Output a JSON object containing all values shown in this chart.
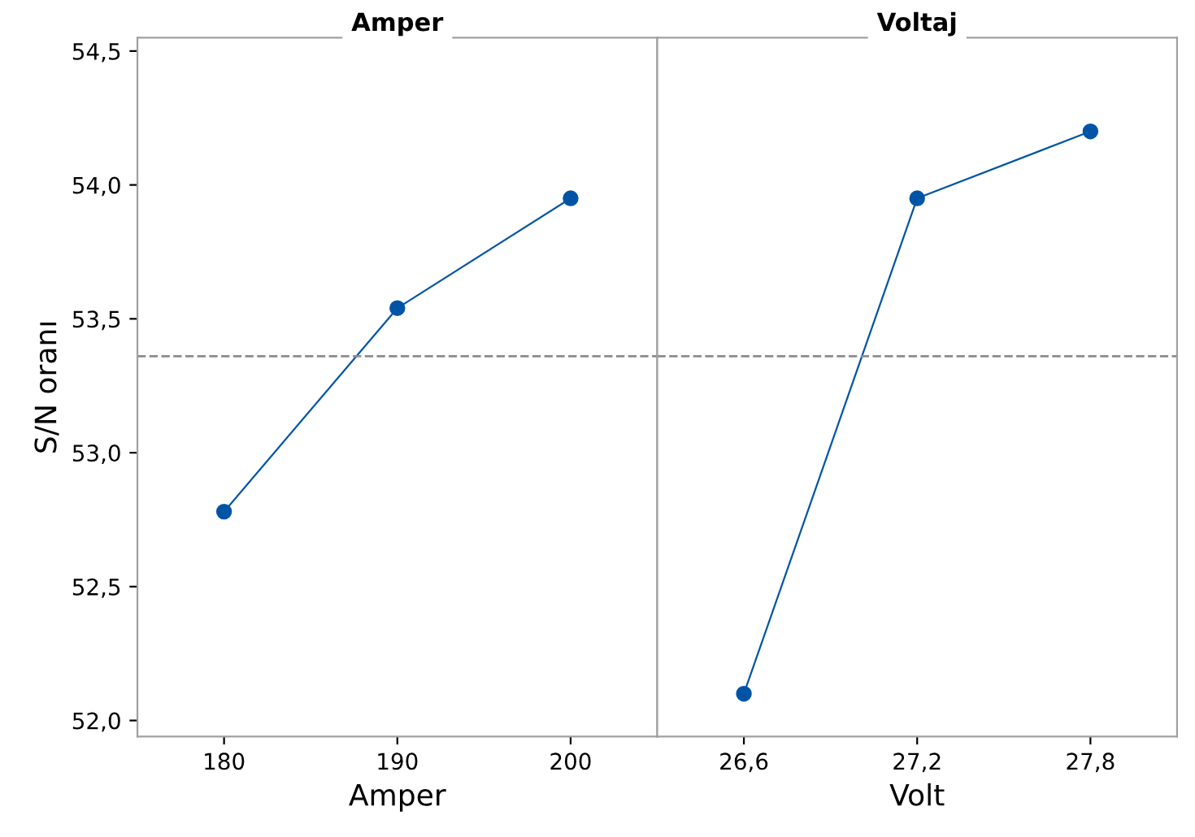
{
  "chart_data": [
    {
      "type": "line",
      "title": "Amper",
      "xlabel": "Amper",
      "ylabel": "S/N oranı",
      "categories": [
        "180",
        "190",
        "200"
      ],
      "values": [
        52.78,
        53.54,
        53.95
      ],
      "color": "#0054a6",
      "marker": "circle",
      "line_style": "solid",
      "ylim": [
        51.94,
        54.55
      ],
      "yticks": [
        {
          "value": 52.0,
          "label": "52,0"
        },
        {
          "value": 52.5,
          "label": "52,5"
        },
        {
          "value": 53.0,
          "label": "53,0"
        },
        {
          "value": 53.5,
          "label": "53,5"
        },
        {
          "value": 54.0,
          "label": "54,0"
        },
        {
          "value": 54.5,
          "label": "54,5"
        }
      ],
      "ref_lines": [
        {
          "axis": "y",
          "value": 53.36,
          "color": "#8c8c8c",
          "line_style": "dashed"
        }
      ],
      "grid": false,
      "legend": false
    },
    {
      "type": "line",
      "title": "Voltaj",
      "xlabel": "Volt",
      "categories": [
        "26,6",
        "27,2",
        "27,8"
      ],
      "values": [
        52.1,
        53.95,
        54.2
      ],
      "color": "#0054a6",
      "marker": "circle",
      "line_style": "solid",
      "ylim": [
        51.94,
        54.55
      ],
      "tick_labels": "x",
      "ref_lines": [
        {
          "axis": "y",
          "value": 53.36,
          "color": "#8c8c8c",
          "line_style": "dashed"
        }
      ],
      "grid": false,
      "legend": false
    }
  ]
}
